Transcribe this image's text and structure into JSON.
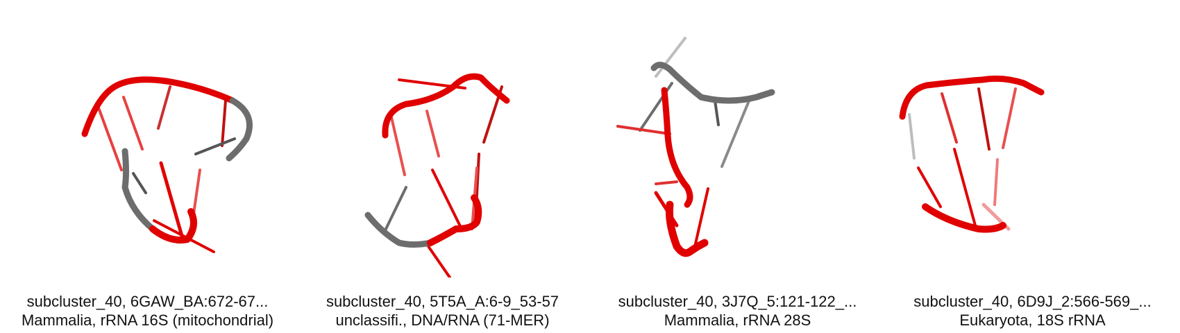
{
  "panels": [
    {
      "title": "subcluster_40, 6GAW_BA:672-67...",
      "subtitle": "Mammalia, rRNA 16S (mitochondrial)"
    },
    {
      "title": "subcluster_40, 5T5A_A:6-9_53-57",
      "subtitle": "unclassifi., DNA/RNA (71-MER)"
    },
    {
      "title": "subcluster_40, 3J7Q_5:121-122_...",
      "subtitle": "Mammalia, rRNA 28S"
    },
    {
      "title": "subcluster_40, 6D9J_2:566-569_...",
      "subtitle": "Eukaryota, 18S rRNA"
    }
  ],
  "colors": {
    "backbone_red": "#e00000",
    "backbone_grey": "#6d6d6d"
  }
}
